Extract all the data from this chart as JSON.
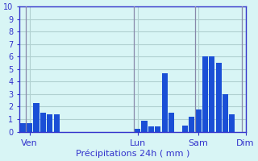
{
  "values": [
    0.7,
    0.7,
    2.3,
    1.5,
    1.4,
    1.4,
    0.0,
    0.0,
    0.0,
    0.0,
    0.0,
    0.0,
    0.0,
    0.0,
    0.0,
    0.0,
    0.0,
    0.2,
    0.9,
    0.4,
    0.4,
    4.7,
    1.5,
    0.0,
    0.5,
    1.2,
    1.8,
    6.0,
    6.0,
    5.5,
    3.0,
    1.4,
    0.0
  ],
  "bar_color": "#1a4fd6",
  "background_color": "#d8f5f5",
  "grid_color": "#b0d0d0",
  "axis_color": "#3333cc",
  "tick_label_color": "#3333cc",
  "xlabel": "Précipitations 24h ( mm )",
  "xlabel_color": "#3333cc",
  "ylim": [
    0,
    10
  ],
  "yticks": [
    0,
    1,
    2,
    3,
    4,
    5,
    6,
    7,
    8,
    9,
    10
  ],
  "day_labels": [
    "Ven",
    "Lun",
    "Sam",
    "Dim"
  ],
  "day_positions": [
    1,
    17,
    26,
    33
  ],
  "n_bars": 33
}
